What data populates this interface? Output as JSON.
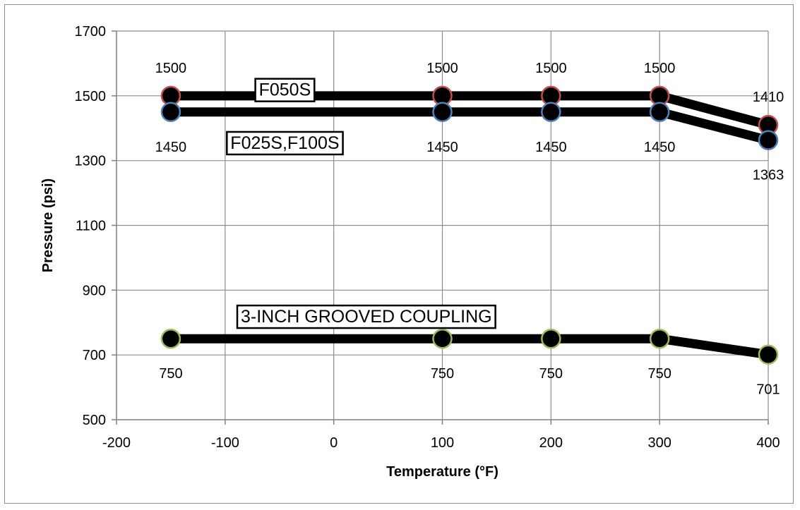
{
  "chart_data": {
    "type": "line",
    "title": "",
    "xlabel": "Temperature (°F)",
    "ylabel": "Pressure (psi)",
    "xlim": [
      -200,
      400
    ],
    "ylim": [
      500,
      1700
    ],
    "xticks": [
      -200,
      -100,
      0,
      100,
      200,
      300,
      400
    ],
    "yticks": [
      500,
      700,
      900,
      1100,
      1300,
      1500,
      1700
    ],
    "grid": true,
    "x": [
      -150,
      100,
      200,
      300,
      400
    ],
    "series": [
      {
        "values": [
          1500,
          1500,
          1500,
          1500,
          1410
        ],
        "marker_edge_color": "#c0504d",
        "label_position": "above",
        "labels": [
          "1500",
          "1500",
          "1500",
          "1500",
          "1410"
        ]
      },
      {
        "values": [
          1450,
          1450,
          1450,
          1450,
          1363
        ],
        "marker_edge_color": "#4f81bd",
        "label_position": "below",
        "labels": [
          "1450",
          "1450",
          "1450",
          "1450",
          "1363"
        ]
      },
      {
        "values": [
          750,
          750,
          750,
          750,
          701
        ],
        "marker_edge_color": "#9bbb59",
        "label_position": "below",
        "labels": [
          "750",
          "750",
          "750",
          "750",
          "701"
        ]
      }
    ],
    "annotations": [
      {
        "text": "F050S",
        "x": -45,
        "y": 1520
      },
      {
        "text": "F025S,F100S",
        "x": -45,
        "y": 1356
      },
      {
        "text": "3-INCH GROOVED COUPLING",
        "x": 30,
        "y": 820
      }
    ],
    "line_color": "#000000",
    "marker_fill": "#000000"
  }
}
